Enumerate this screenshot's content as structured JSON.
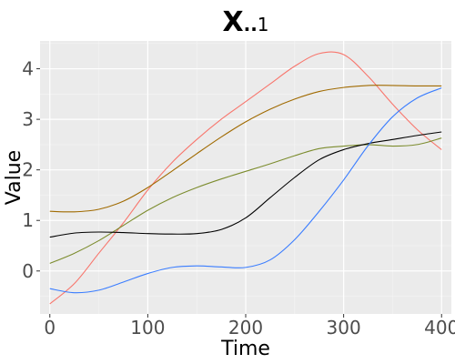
{
  "chart_data": {
    "type": "line",
    "title": "X..1",
    "title_parts": {
      "main": "X",
      "dots": "..",
      "sub": "1"
    },
    "xlabel": "Time",
    "ylabel": "Value",
    "xlim": [
      -10,
      410
    ],
    "ylim": [
      -0.85,
      4.55
    ],
    "x_ticks": [
      0,
      100,
      200,
      300,
      400
    ],
    "y_ticks": [
      0,
      1,
      2,
      3,
      4
    ],
    "x_tick_labels": [
      "0",
      "100",
      "200",
      "300",
      "400"
    ],
    "y_tick_labels": [
      "0",
      "1",
      "2",
      "3",
      "4"
    ],
    "grid": true,
    "legend": "none",
    "background": "#ebebeb",
    "series": [
      {
        "color": "#f8766d",
        "points": [
          [
            0,
            -0.65
          ],
          [
            25,
            -0.25
          ],
          [
            50,
            0.35
          ],
          [
            75,
            0.95
          ],
          [
            100,
            1.6
          ],
          [
            125,
            2.15
          ],
          [
            150,
            2.6
          ],
          [
            175,
            3.0
          ],
          [
            200,
            3.35
          ],
          [
            225,
            3.7
          ],
          [
            250,
            4.05
          ],
          [
            275,
            4.3
          ],
          [
            300,
            4.28
          ],
          [
            325,
            3.85
          ],
          [
            350,
            3.3
          ],
          [
            375,
            2.8
          ],
          [
            400,
            2.4
          ]
        ]
      },
      {
        "color": "#a06a00",
        "points": [
          [
            0,
            1.18
          ],
          [
            25,
            1.17
          ],
          [
            50,
            1.22
          ],
          [
            75,
            1.38
          ],
          [
            100,
            1.65
          ],
          [
            125,
            1.98
          ],
          [
            150,
            2.32
          ],
          [
            175,
            2.65
          ],
          [
            200,
            2.95
          ],
          [
            225,
            3.2
          ],
          [
            250,
            3.4
          ],
          [
            275,
            3.55
          ],
          [
            300,
            3.63
          ],
          [
            325,
            3.67
          ],
          [
            350,
            3.67
          ],
          [
            375,
            3.66
          ],
          [
            400,
            3.66
          ]
        ]
      },
      {
        "color": "#7c8c2e",
        "points": [
          [
            0,
            0.15
          ],
          [
            25,
            0.35
          ],
          [
            50,
            0.6
          ],
          [
            75,
            0.9
          ],
          [
            100,
            1.2
          ],
          [
            125,
            1.45
          ],
          [
            150,
            1.65
          ],
          [
            175,
            1.82
          ],
          [
            200,
            1.97
          ],
          [
            225,
            2.12
          ],
          [
            250,
            2.28
          ],
          [
            275,
            2.42
          ],
          [
            300,
            2.47
          ],
          [
            325,
            2.5
          ],
          [
            350,
            2.47
          ],
          [
            375,
            2.5
          ],
          [
            400,
            2.63
          ]
        ]
      },
      {
        "color": "#000000",
        "points": [
          [
            0,
            0.67
          ],
          [
            25,
            0.75
          ],
          [
            50,
            0.77
          ],
          [
            75,
            0.76
          ],
          [
            100,
            0.74
          ],
          [
            125,
            0.73
          ],
          [
            150,
            0.74
          ],
          [
            175,
            0.82
          ],
          [
            200,
            1.05
          ],
          [
            225,
            1.45
          ],
          [
            250,
            1.85
          ],
          [
            275,
            2.2
          ],
          [
            300,
            2.4
          ],
          [
            325,
            2.52
          ],
          [
            350,
            2.6
          ],
          [
            375,
            2.68
          ],
          [
            400,
            2.75
          ]
        ]
      },
      {
        "color": "#3a7dff",
        "points": [
          [
            0,
            -0.35
          ],
          [
            25,
            -0.43
          ],
          [
            50,
            -0.38
          ],
          [
            75,
            -0.22
          ],
          [
            100,
            -0.05
          ],
          [
            125,
            0.07
          ],
          [
            150,
            0.1
          ],
          [
            175,
            0.08
          ],
          [
            200,
            0.07
          ],
          [
            225,
            0.22
          ],
          [
            250,
            0.62
          ],
          [
            275,
            1.18
          ],
          [
            300,
            1.8
          ],
          [
            325,
            2.48
          ],
          [
            350,
            3.05
          ],
          [
            375,
            3.42
          ],
          [
            400,
            3.62
          ]
        ]
      }
    ]
  }
}
